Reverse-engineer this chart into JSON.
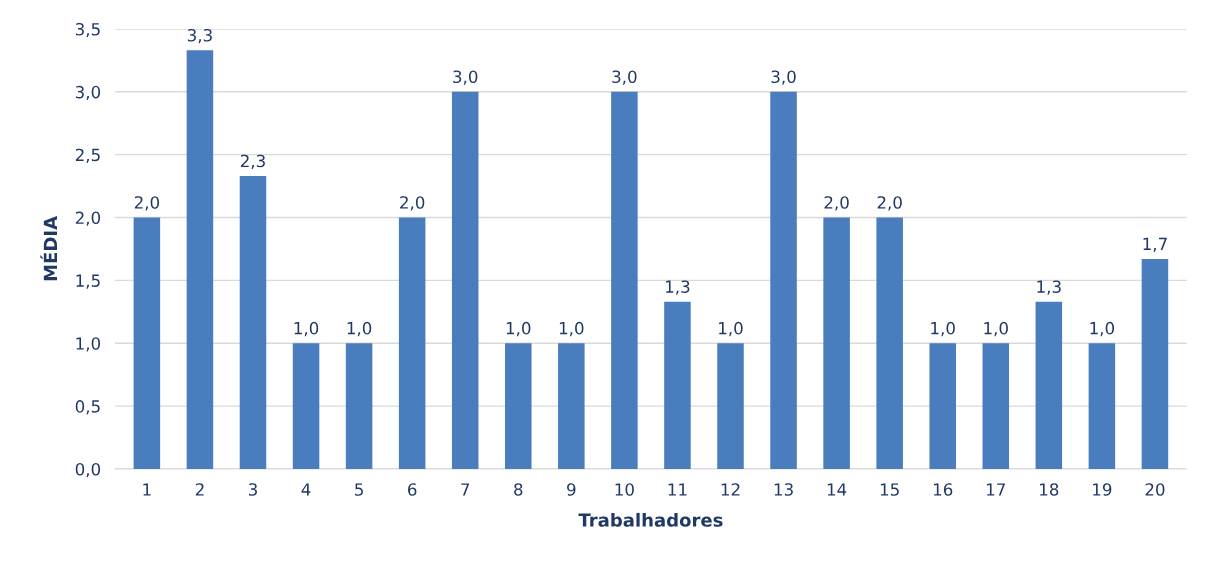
{
  "chart_data": {
    "type": "bar",
    "xlabel": "Trabalhadores",
    "ylabel": "MÉDIA",
    "categories": [
      "1",
      "2",
      "3",
      "4",
      "5",
      "6",
      "7",
      "8",
      "9",
      "10",
      "11",
      "12",
      "13",
      "14",
      "15",
      "16",
      "17",
      "18",
      "19",
      "20"
    ],
    "values": [
      2.0,
      3.33,
      2.33,
      1.0,
      1.0,
      2.0,
      3.0,
      1.0,
      1.0,
      3.0,
      1.33,
      1.0,
      3.0,
      2.0,
      2.0,
      1.0,
      1.0,
      1.33,
      1.0,
      1.67
    ],
    "value_labels": [
      "2,0",
      "3,3",
      "2,3",
      "1,0",
      "1,0",
      "2,0",
      "3,0",
      "1,0",
      "1,0",
      "3,0",
      "1,3",
      "1,0",
      "3,0",
      "2,0",
      "2,0",
      "1,0",
      "1,0",
      "1,3",
      "1,0",
      "1,7"
    ],
    "color": "#4a7dbd",
    "ylim": [
      0,
      3.5
    ],
    "yticks": [
      {
        "value": 0,
        "label": "0,0"
      },
      {
        "value": 0.5,
        "label": "0,5"
      },
      {
        "value": 1,
        "label": "1,0"
      },
      {
        "value": 1.5,
        "label": "1,5"
      },
      {
        "value": 2,
        "label": "2,0"
      },
      {
        "value": 2.5,
        "label": "2,5"
      },
      {
        "value": 3,
        "label": "3,0"
      },
      {
        "value": 3.5,
        "label": "3,5"
      }
    ],
    "grid": "y",
    "legend": false
  }
}
